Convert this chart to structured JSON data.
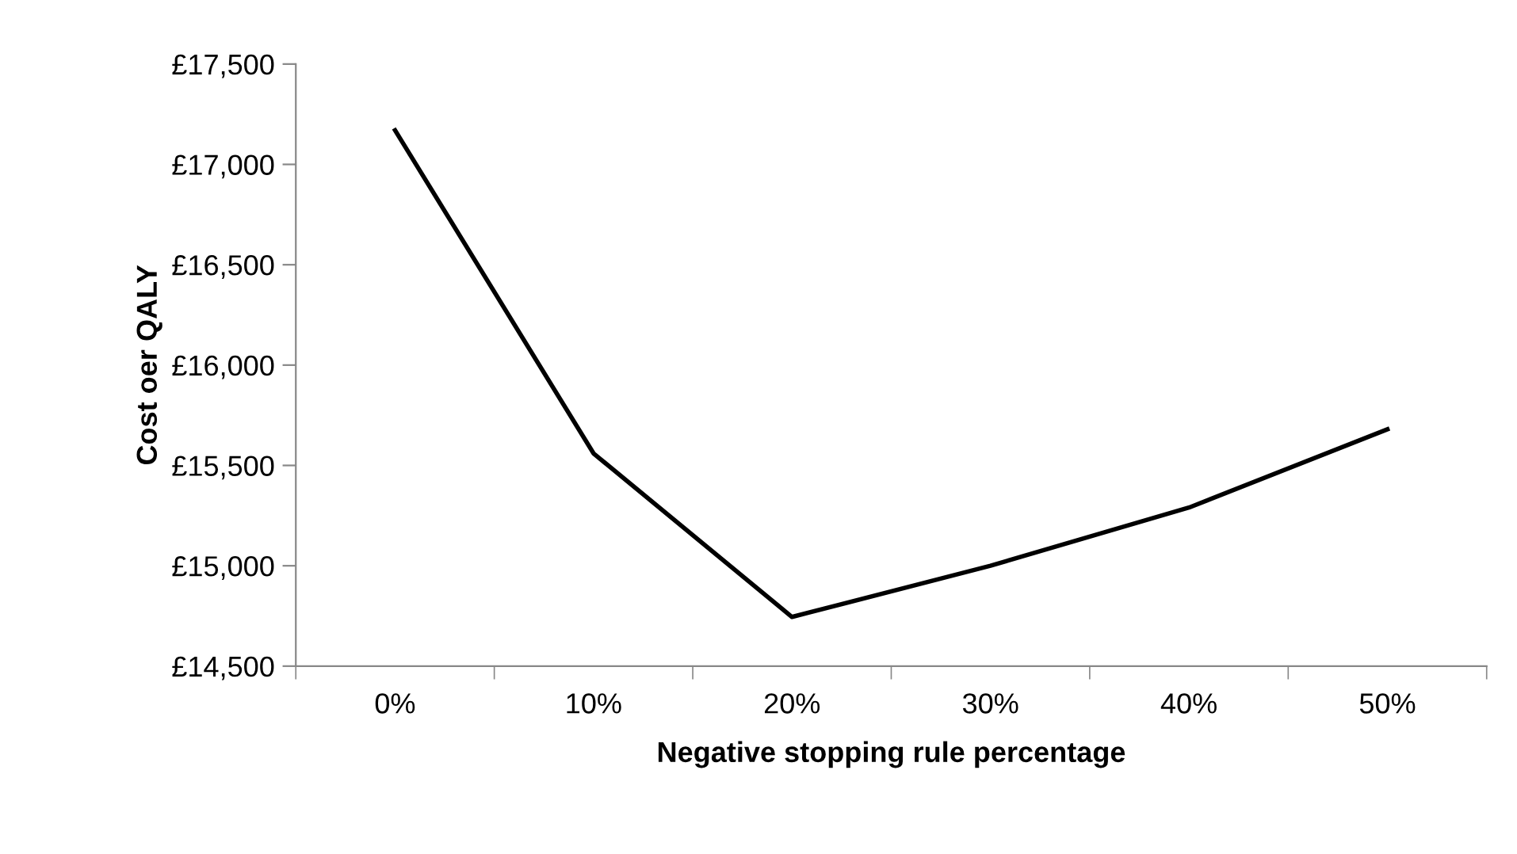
{
  "chart_data": {
    "type": "line",
    "xlabel": "Negative stopping rule percentage",
    "ylabel": "Cost oer QALY",
    "categories": [
      "0%",
      "10%",
      "20%",
      "30%",
      "40%",
      "50%"
    ],
    "series": [
      {
        "color": "#000000",
        "values": [
          17170,
          15560,
          14745,
          15000,
          15290,
          15680
        ]
      }
    ],
    "ylim": [
      14500,
      17500
    ],
    "yticks": [
      {
        "value": 14500,
        "label": "£14,500"
      },
      {
        "value": 15000,
        "label": "£15,000"
      },
      {
        "value": 15500,
        "label": "£15,500"
      },
      {
        "value": 16000,
        "label": "£16,000"
      },
      {
        "value": 16500,
        "label": "£16,500"
      },
      {
        "value": 17000,
        "label": "£17,000"
      },
      {
        "value": 17500,
        "label": "£17,500"
      }
    ],
    "grid": false,
    "legend": false,
    "marker": "none",
    "line_style": "solid"
  }
}
